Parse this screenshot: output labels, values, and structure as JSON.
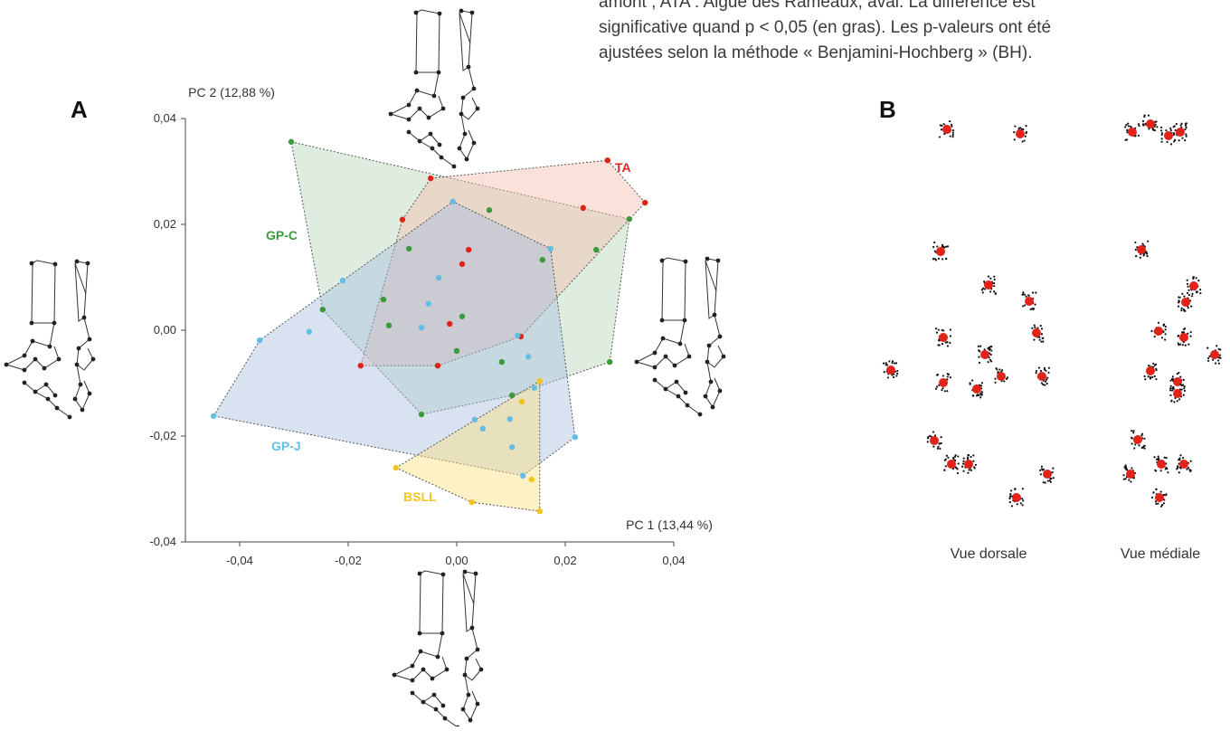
{
  "caption": [
    "amont ; ATA : Aigue des Rameaux, aval. La différence est",
    "significative quand p < 0,05 (en gras). Les p-valeurs ont été",
    "ajustées selon la méthode « Benjamini-Hochberg » (BH)."
  ],
  "panel_a": {
    "label": "A"
  },
  "chart_data": {
    "type": "scatter",
    "x_label": "PC 1 (13,44 %)",
    "y_label": "PC 2 (12,88 %)",
    "xlim": [
      -0.05,
      0.04
    ],
    "ylim": [
      -0.04,
      0.04
    ],
    "xticks": [
      {
        "value": -0.04,
        "label": "-0,04"
      },
      {
        "value": -0.02,
        "label": "-0,02"
      },
      {
        "value": 0,
        "label": "0,00"
      },
      {
        "value": 0.02,
        "label": "0,02"
      },
      {
        "value": 0.04,
        "label": "0,04"
      }
    ],
    "yticks": [
      {
        "value": -0.04,
        "label": "-0,04"
      },
      {
        "value": -0.02,
        "label": "-0,02"
      },
      {
        "value": 0,
        "label": "0,00"
      },
      {
        "value": 0.02,
        "label": "0,02"
      },
      {
        "value": 0.04,
        "label": "0,04"
      }
    ],
    "grid": false,
    "series": [
      {
        "name": "GP-C",
        "color": "#3c9a3c",
        "fill": "#b9d6bb",
        "x": [
          -0.0305,
          0.006,
          -0.0088,
          0.0158,
          0.0257,
          0.0318,
          -0.0247,
          -0.0135,
          -0.0125,
          0.001,
          0.0,
          0.0083,
          -0.0065,
          0.0102,
          0.0282
        ],
        "y": [
          0.0356,
          0.0227,
          0.0154,
          0.0133,
          0.0152,
          0.021,
          0.0039,
          0.0058,
          0.0009,
          0.0026,
          -0.0039,
          -0.006,
          -0.0159,
          -0.0123,
          -0.006
        ]
      },
      {
        "name": "TA",
        "color": "#e2231a",
        "fill": "#f3bfae",
        "x": [
          -0.0048,
          -0.01,
          0.0022,
          0.001,
          -0.0013,
          0.0118,
          -0.0177,
          -0.0035,
          0.0233,
          0.0278,
          0.0347
        ],
        "y": [
          0.0287,
          0.0209,
          0.0152,
          0.0125,
          0.0012,
          -0.0012,
          -0.0067,
          -0.0067,
          0.0231,
          0.0321,
          0.0241
        ]
      },
      {
        "name": "GP-J",
        "color": "#63bde6",
        "fill": "#a9bfe0",
        "x": [
          -0.0007,
          0.0173,
          -0.021,
          -0.0033,
          -0.0052,
          -0.0363,
          -0.0272,
          -0.0065,
          0.0112,
          0.0132,
          0.0143,
          -0.0448,
          0.0033,
          0.0048,
          0.0098,
          0.0102,
          0.0218,
          0.0122
        ],
        "y": [
          0.0243,
          0.0154,
          0.0094,
          0.0099,
          0.005,
          -0.0019,
          -0.0003,
          0.0005,
          -0.001,
          -0.005,
          -0.0109,
          -0.0162,
          -0.0169,
          -0.0186,
          -0.0168,
          -0.0221,
          -0.0202,
          -0.0275
        ]
      },
      {
        "name": "BSLL",
        "color": "#f5c51a",
        "fill": "#fbe07e",
        "x": [
          0.0153,
          0.012,
          -0.0112,
          0.0138,
          0.0028,
          0.0153
        ],
        "y": [
          -0.0096,
          -0.0135,
          -0.026,
          -0.0282,
          -0.0325,
          -0.0342
        ]
      }
    ]
  },
  "panel_b": {
    "label": "B",
    "views": [
      "Vue dorsale",
      "Vue médiale"
    ]
  }
}
